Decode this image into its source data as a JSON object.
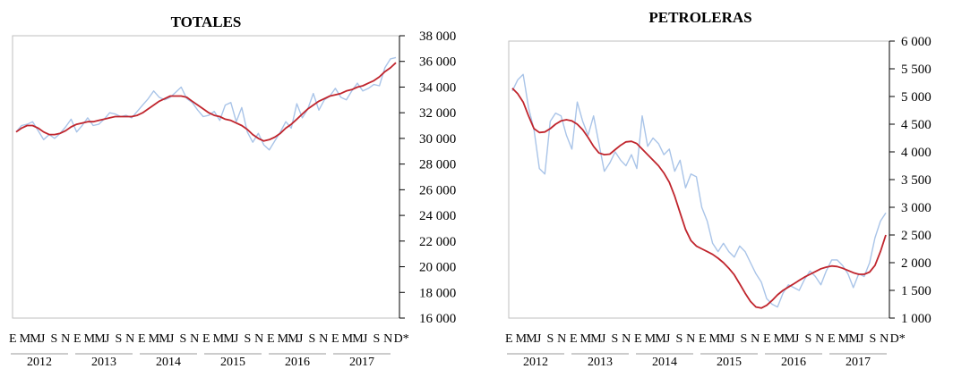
{
  "chart_data": [
    {
      "type": "line",
      "title": "TOTALES",
      "ylim": [
        16000,
        38000
      ],
      "yticks": [
        "38 000",
        "36 000",
        "34 000",
        "32 000",
        "30 000",
        "28 000",
        "26 000",
        "24 000",
        "22 000",
        "20 000",
        "18 000",
        "16 000"
      ],
      "month_labels": [
        "E",
        "M",
        "M",
        "J",
        "S",
        "N"
      ],
      "years": [
        "2012",
        "2013",
        "2014",
        "2015",
        "2016",
        "2017"
      ],
      "final_month_labels": [
        "E",
        "M",
        "M",
        "J",
        "S",
        "N",
        "D*"
      ],
      "series": [
        {
          "color": "#a9c4e8",
          "values": [
            30500,
            31000,
            31100,
            31300,
            30600,
            29900,
            30300,
            30000,
            30400,
            30900,
            31500,
            30500,
            31000,
            31600,
            31000,
            31100,
            31500,
            32000,
            31900,
            31700,
            31800,
            31600,
            32100,
            32600,
            33100,
            33700,
            33200,
            33000,
            33200,
            33600,
            34000,
            33100,
            32800,
            32200,
            31700,
            31800,
            32100,
            31400,
            32600,
            32800,
            31300,
            32400,
            30500,
            29700,
            30400,
            29500,
            29100,
            29800,
            30500,
            31300,
            30800,
            32700,
            31600,
            32300,
            33500,
            32200,
            33000,
            33300,
            33900,
            33200,
            33000,
            33700,
            34300,
            33700,
            33900,
            34200,
            34100,
            35500,
            36200,
            36300
          ]
        },
        {
          "color": "#c0252d",
          "values": [
            30500,
            30800,
            31000,
            31000,
            30800,
            30500,
            30300,
            30300,
            30400,
            30600,
            30900,
            31100,
            31200,
            31300,
            31300,
            31400,
            31500,
            31600,
            31700,
            31700,
            31700,
            31700,
            31800,
            32000,
            32300,
            32600,
            32900,
            33100,
            33300,
            33300,
            33300,
            33200,
            32900,
            32600,
            32300,
            32000,
            31800,
            31700,
            31500,
            31400,
            31200,
            31000,
            30700,
            30300,
            30000,
            29800,
            29900,
            30100,
            30400,
            30800,
            31100,
            31500,
            31900,
            32300,
            32600,
            32900,
            33100,
            33300,
            33400,
            33500,
            33700,
            33800,
            34000,
            34100,
            34300,
            34500,
            34800,
            35200,
            35500,
            35900
          ]
        }
      ]
    },
    {
      "type": "line",
      "title": "PETROLERAS",
      "ylim": [
        1000,
        6000
      ],
      "yticks": [
        "6 000",
        "5 500",
        "5 000",
        "4 500",
        "4 000",
        "3 500",
        "3 000",
        "2 500",
        "2 000",
        "1 500",
        "1 000"
      ],
      "month_labels": [
        "E",
        "M",
        "M",
        "J",
        "S",
        "N"
      ],
      "years": [
        "2012",
        "2013",
        "2014",
        "2015",
        "2016",
        "2017"
      ],
      "final_month_labels": [
        "E",
        "M",
        "M",
        "J",
        "S",
        "N",
        "D*"
      ],
      "series": [
        {
          "color": "#a9c4e8",
          "values": [
            5100,
            5300,
            5400,
            4800,
            4400,
            3700,
            3600,
            4550,
            4700,
            4650,
            4300,
            4050,
            4900,
            4550,
            4300,
            4650,
            4150,
            3650,
            3800,
            4000,
            3850,
            3750,
            3950,
            3700,
            4650,
            4100,
            4250,
            4150,
            3950,
            4050,
            3650,
            3850,
            3350,
            3600,
            3550,
            3000,
            2750,
            2350,
            2200,
            2350,
            2200,
            2100,
            2300,
            2200,
            2000,
            1800,
            1650,
            1350,
            1250,
            1200,
            1450,
            1600,
            1550,
            1500,
            1700,
            1850,
            1750,
            1600,
            1850,
            2050,
            2050,
            1950,
            1800,
            1550,
            1800,
            1750,
            2000,
            2450,
            2750,
            2900
          ]
        },
        {
          "color": "#c0252d",
          "values": [
            5150,
            5050,
            4900,
            4650,
            4420,
            4350,
            4360,
            4420,
            4500,
            4560,
            4580,
            4560,
            4500,
            4400,
            4260,
            4100,
            3980,
            3950,
            3960,
            4040,
            4120,
            4180,
            4190,
            4150,
            4050,
            3950,
            3850,
            3750,
            3620,
            3450,
            3200,
            2900,
            2600,
            2400,
            2300,
            2250,
            2200,
            2150,
            2080,
            2000,
            1900,
            1780,
            1620,
            1450,
            1300,
            1200,
            1180,
            1230,
            1320,
            1420,
            1500,
            1560,
            1620,
            1680,
            1740,
            1790,
            1840,
            1890,
            1920,
            1940,
            1930,
            1900,
            1860,
            1820,
            1790,
            1790,
            1830,
            1950,
            2200,
            2500
          ]
        }
      ]
    }
  ]
}
